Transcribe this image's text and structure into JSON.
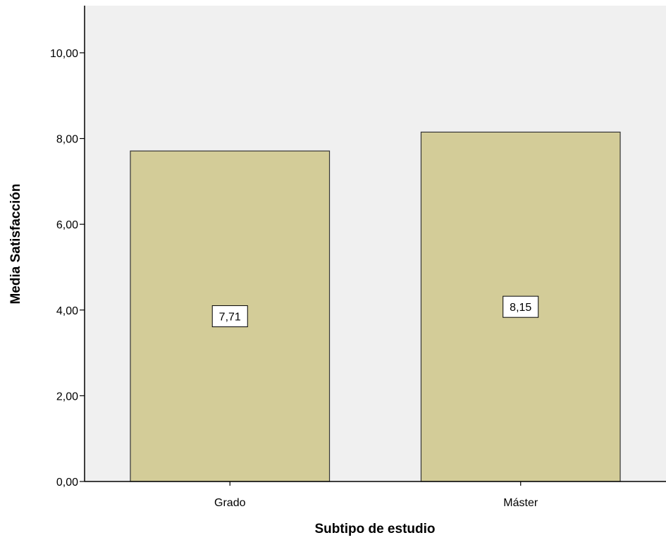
{
  "chart_data": {
    "type": "bar",
    "title": "",
    "xlabel": "Subtipo de estudio",
    "ylabel": "Media Satisfacción",
    "categories": [
      "Grado",
      "Máster"
    ],
    "values": [
      7.71,
      8.15
    ],
    "data_labels": [
      "7,71",
      "8,15"
    ],
    "ylim": [
      0,
      11.1
    ],
    "yticks": [
      0,
      2,
      4,
      6,
      8,
      10
    ],
    "ytick_labels": [
      "0,00",
      "2,00",
      "4,00",
      "6,00",
      "8,00",
      "10,00"
    ],
    "grid": false,
    "legend": "none",
    "colors": {
      "bar_fill": "#d3cc98",
      "bar_stroke": "#333333",
      "plot_background": "#f0f0f0",
      "axis": "#000000"
    }
  }
}
